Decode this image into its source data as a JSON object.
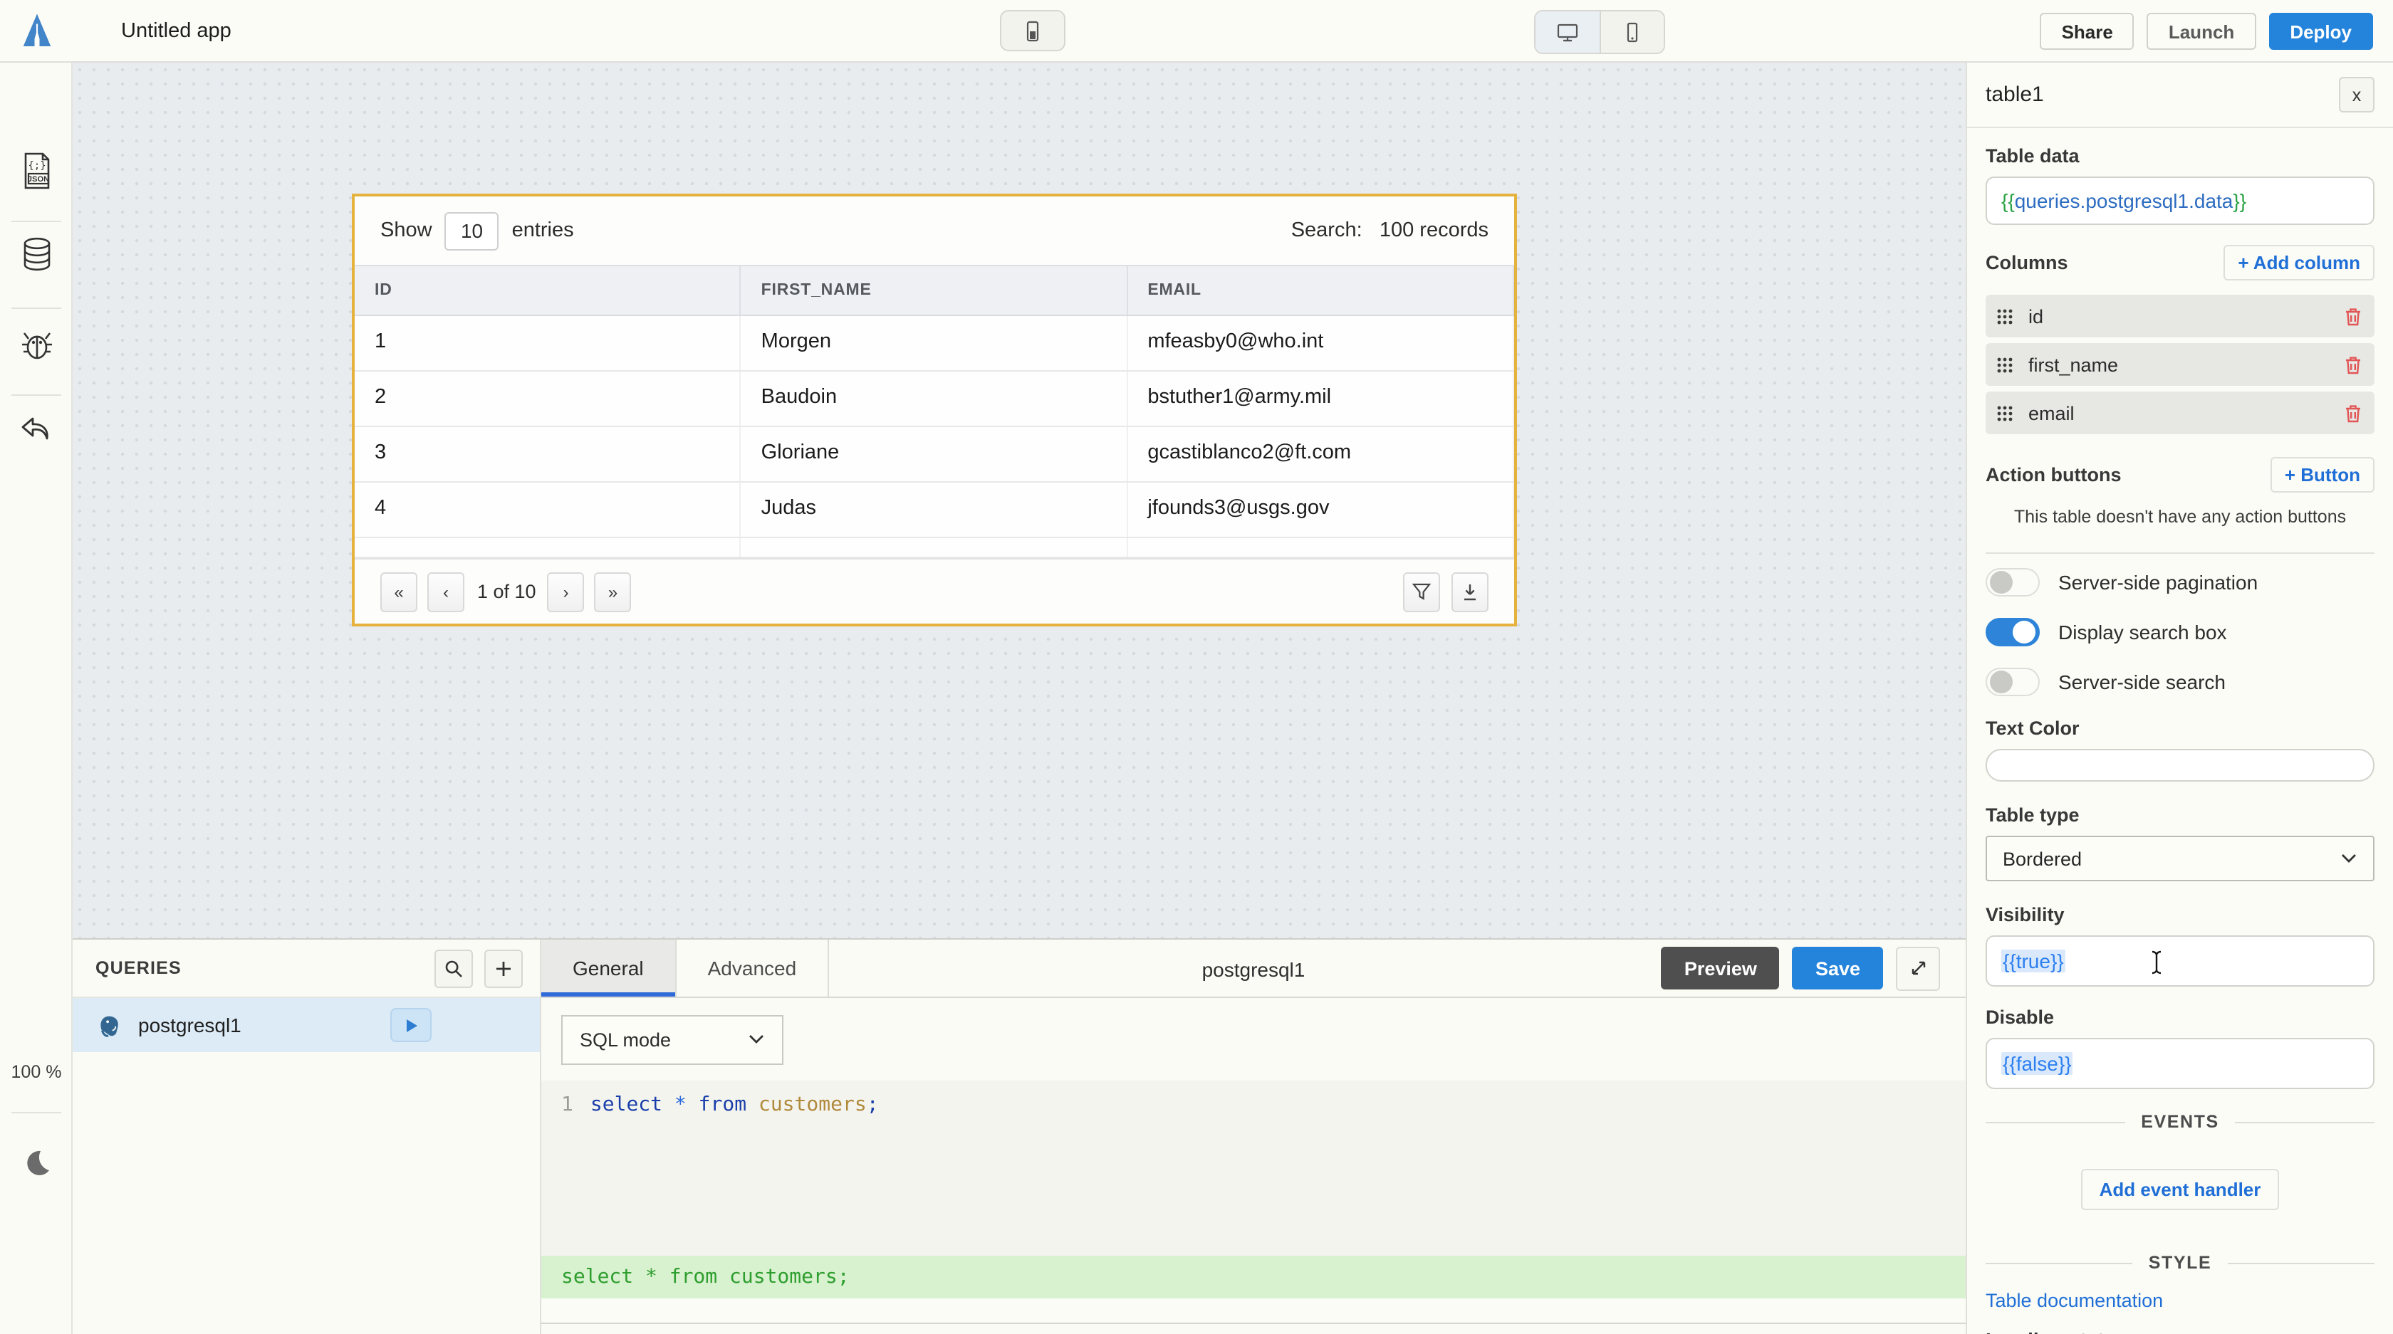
{
  "topbar": {
    "app_title": "Untitled app",
    "share_label": "Share",
    "launch_label": "Launch",
    "deploy_label": "Deploy"
  },
  "left_rail": {
    "zoom_level": "100 %",
    "icons": [
      "json-file-icon",
      "database-icon",
      "bug-icon",
      "undo-icon",
      "moon-icon"
    ]
  },
  "canvas": {
    "table_widget": {
      "show_label": "Show",
      "page_size": "10",
      "entries_label": "entries",
      "search_label": "Search:",
      "search_value": "100 records",
      "columns": [
        "ID",
        "FIRST_NAME",
        "EMAIL"
      ],
      "rows": [
        [
          "1",
          "Morgen",
          "mfeasby0@who.int"
        ],
        [
          "2",
          "Baudoin",
          "bstuther1@army.mil"
        ],
        [
          "3",
          "Gloriane",
          "gcastiblanco2@ft.com"
        ],
        [
          "4",
          "Judas",
          "jfounds3@usgs.gov"
        ]
      ],
      "pagination": {
        "first": "«",
        "prev": "‹",
        "label": "1 of 10",
        "next": "›",
        "last": "»"
      }
    }
  },
  "queries_panel": {
    "title": "QUERIES",
    "items": [
      {
        "name": "postgresql1",
        "selected": true
      }
    ]
  },
  "editor": {
    "tabs": [
      {
        "label": "General",
        "active": true
      },
      {
        "label": "Advanced",
        "active": false
      }
    ],
    "title": "postgresql1",
    "preview_label": "Preview",
    "save_label": "Save",
    "sql_mode_value": "SQL mode",
    "code": {
      "line_number": "1",
      "kw_select": "select",
      "star": "*",
      "kw_from": "from",
      "ident": "customers",
      "semi": ";"
    },
    "evaluated_value": "select * from customers;"
  },
  "property_pane": {
    "title": "table1",
    "close_label": "x",
    "table_data_label": "Table data",
    "table_data_open": "{{",
    "table_data_inner": "queries.postgresql1.data",
    "table_data_close": "}}",
    "columns_label": "Columns",
    "add_column_label": "+ Add column",
    "columns": [
      "id",
      "first_name",
      "email"
    ],
    "action_buttons_label": "Action buttons",
    "add_button_label": "+ Button",
    "no_action_buttons_text": "This table doesn't have any action buttons",
    "toggles": [
      {
        "label": "Server-side pagination",
        "on": false
      },
      {
        "label": "Display search box",
        "on": true
      },
      {
        "label": "Server-side search",
        "on": false
      }
    ],
    "text_color_label": "Text Color",
    "table_type_label": "Table type",
    "table_type_value": "Bordered",
    "visibility_label": "Visibility",
    "visibility_value": "{{true}}",
    "disable_label": "Disable",
    "disable_value": "{{false}}",
    "events_heading": "EVENTS",
    "add_event_handler_label": "Add event handler",
    "style_heading": "STYLE",
    "doc_link_label": "Table documentation",
    "partial_bottom_text": "Loading state"
  },
  "colors": {
    "accent_blue": "#2483da",
    "toggle_on_blue": "#2d84d8",
    "selection_gold": "#e6b23e",
    "link_blue": "#1f6fd6",
    "run_triangle_blue": "#2d7dd2",
    "trash_red": "#e25555",
    "eval_green": "#2e9e2e",
    "postgres_blue": "#336791"
  }
}
